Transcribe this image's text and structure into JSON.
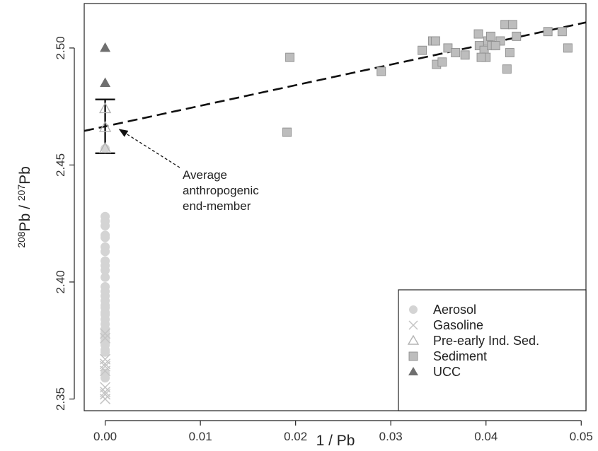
{
  "chart_data": {
    "type": "scatter",
    "title": "",
    "xlabel": "1 / Pb",
    "ylabel": "208Pb / 207Pb",
    "xlim": [
      -0.0022,
      0.0505
    ],
    "ylim": [
      2.345,
      2.519
    ],
    "xticks": [
      "0.00",
      "0.01",
      "0.02",
      "0.03",
      "0.04",
      "0.05"
    ],
    "yticks": [
      "2.35",
      "2.40",
      "2.45",
      "2.50"
    ],
    "grid": false,
    "legend_position": "bottom-right",
    "legend": [
      "Aerosol",
      "Gasoline",
      "Pre-early Ind. Sed.",
      "Sediment",
      "UCC"
    ],
    "colors": {
      "aerosol": "#d4d4d4",
      "gasoline": "#c4c4c4",
      "pre_industrial": "#b4b4b4",
      "sediment": "#bdbdbd",
      "ucc": "#6f6f6f",
      "line": "#111111"
    },
    "series": [
      {
        "name": "Aerosol",
        "marker": "circle",
        "x": [
          0,
          0,
          0,
          0,
          0,
          0,
          0,
          0,
          0,
          0,
          0,
          0,
          0,
          0,
          0,
          0,
          0,
          0,
          0,
          0,
          0,
          0,
          0,
          0,
          0,
          0,
          0,
          0,
          0,
          0,
          0,
          0,
          0,
          0
        ],
        "y": [
          2.457,
          2.428,
          2.426,
          2.424,
          2.42,
          2.419,
          2.415,
          2.413,
          2.409,
          2.407,
          2.405,
          2.402,
          2.398,
          2.396,
          2.394,
          2.392,
          2.39,
          2.389,
          2.387,
          2.386,
          2.384,
          2.382,
          2.38,
          2.379,
          2.378,
          2.377,
          2.376,
          2.375,
          2.374,
          2.373,
          2.371,
          2.37,
          2.361,
          2.359
        ]
      },
      {
        "name": "Gasoline",
        "marker": "x",
        "x": [
          0,
          0,
          0,
          0,
          0,
          0,
          0,
          0,
          0,
          0
        ],
        "y": [
          2.378,
          2.376,
          2.367,
          2.365,
          2.364,
          2.362,
          2.355,
          2.353,
          2.352,
          2.35
        ]
      },
      {
        "name": "Pre-early Ind. Sed.",
        "marker": "triangle-open",
        "x": [
          0,
          0,
          0
        ],
        "y": [
          2.474,
          2.466,
          2.457
        ]
      },
      {
        "name": "Sediment",
        "marker": "square",
        "x": [
          0.0191,
          0.0194,
          0.029,
          0.0333,
          0.0344,
          0.0347,
          0.0348,
          0.0354,
          0.036,
          0.0368,
          0.0378,
          0.0392,
          0.0393,
          0.0398,
          0.04,
          0.0402,
          0.0405,
          0.0406,
          0.0415,
          0.042,
          0.0422,
          0.0425,
          0.0428,
          0.0432,
          0.0465,
          0.048,
          0.0486,
          0.0395,
          0.041
        ],
        "y": [
          2.464,
          2.496,
          2.49,
          2.499,
          2.503,
          2.503,
          2.493,
          2.494,
          2.5,
          2.498,
          2.497,
          2.506,
          2.501,
          2.499,
          2.496,
          2.503,
          2.505,
          2.501,
          2.503,
          2.51,
          2.491,
          2.498,
          2.51,
          2.505,
          2.507,
          2.507,
          2.5,
          2.496,
          2.501
        ]
      },
      {
        "name": "UCC",
        "marker": "triangle-filled",
        "x": [
          0,
          0
        ],
        "y": [
          2.5,
          2.485
        ]
      }
    ],
    "regression_line": {
      "style": "dashed",
      "intercept": 2.4665,
      "slope": 0.88
    },
    "error_bar": {
      "x": 0,
      "y_low": 2.455,
      "y_high": 2.478
    },
    "annotation": {
      "lines": [
        "Average",
        "anthropogenic",
        "end-member"
      ],
      "target": {
        "x": 0.0012,
        "y": 2.4655
      }
    }
  }
}
